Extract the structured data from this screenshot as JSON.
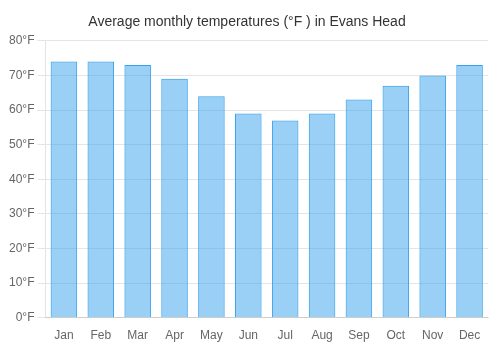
{
  "chart_data": {
    "type": "bar",
    "title": "Average monthly temperatures (°F ) in Evans Head",
    "categories": [
      "Jan",
      "Feb",
      "Mar",
      "Apr",
      "May",
      "Jun",
      "Jul",
      "Aug",
      "Sep",
      "Oct",
      "Nov",
      "Dec"
    ],
    "values": [
      74,
      74,
      73,
      69,
      64,
      59,
      57,
      59,
      63,
      67,
      70,
      73
    ],
    "ylim": [
      0,
      80
    ],
    "yticks": [
      {
        "value": 0,
        "label": "0°F"
      },
      {
        "value": 10,
        "label": "10°F"
      },
      {
        "value": 20,
        "label": "20°F"
      },
      {
        "value": 30,
        "label": "30°F"
      },
      {
        "value": 40,
        "label": "40°F"
      },
      {
        "value": 50,
        "label": "50°F"
      },
      {
        "value": 60,
        "label": "60°F"
      },
      {
        "value": 70,
        "label": "70°F"
      },
      {
        "value": 80,
        "label": "80°F"
      }
    ],
    "grid": true
  }
}
